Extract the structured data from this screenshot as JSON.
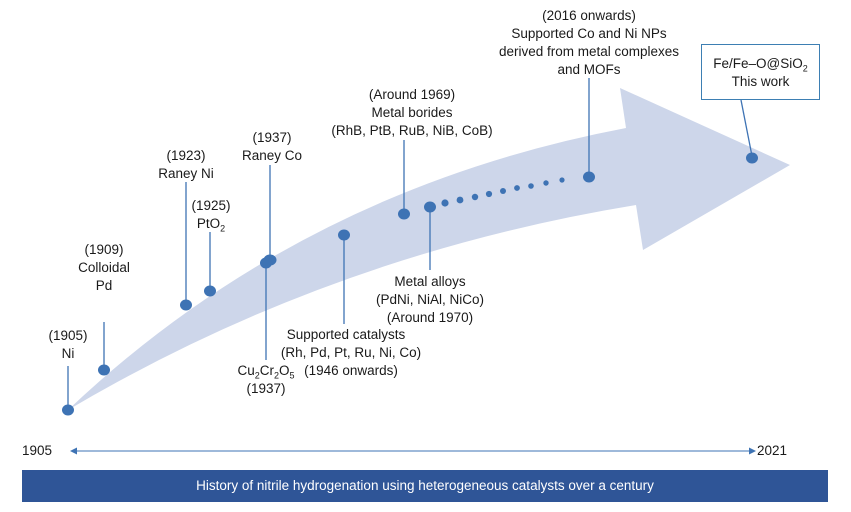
{
  "title": "History of nitrile hydrogenation using heterogeneous catalysts over a century",
  "axis": {
    "start": "1905",
    "end": "2021"
  },
  "colors": {
    "point": "#3e73b4",
    "line": "#3e73b4",
    "arrow": "#cdd6ea",
    "banner": "#2f5597"
  },
  "milestones": {
    "ni": {
      "year": "(1905)",
      "name": "Ni"
    },
    "colloidal_pd": {
      "year": "(1909)",
      "name_line1": "Colloidal",
      "name_line2": "Pd"
    },
    "raney_ni": {
      "year": "(1923)",
      "name": "Raney Ni"
    },
    "pto2": {
      "year": "(1925)",
      "name_base": "PtO",
      "name_sub": "2"
    },
    "raney_co": {
      "year": "(1937)",
      "name": "Raney Co"
    },
    "cu2cr2o5": {
      "p1": "Cu",
      "s1": "2",
      "p2": "Cr",
      "s2": "2",
      "p3": "O",
      "s3": "5",
      "year": "(1937)"
    },
    "supported": {
      "name": "Supported catalysts",
      "metals": "(Rh, Pd, Pt, Ru, Ni, Co)",
      "year": "(1946 onwards)"
    },
    "borides": {
      "year": "(Around 1969)",
      "name": "Metal borides",
      "examples": "(RhB, PtB, RuB, NiB, CoB)"
    },
    "alloys": {
      "name": "Metal alloys",
      "examples": "(PdNi, NiAl, NiCo)",
      "year": "(Around 1970)"
    },
    "co_ni_nps": {
      "year": "(2016 onwards)",
      "line1": "Supported Co and Ni NPs",
      "line2": "derived from metal complexes",
      "line3": "and MOFs"
    }
  },
  "this_work": {
    "formula_base": "Fe/Fe–O@SiO",
    "formula_sub": "2",
    "caption": "This work"
  }
}
